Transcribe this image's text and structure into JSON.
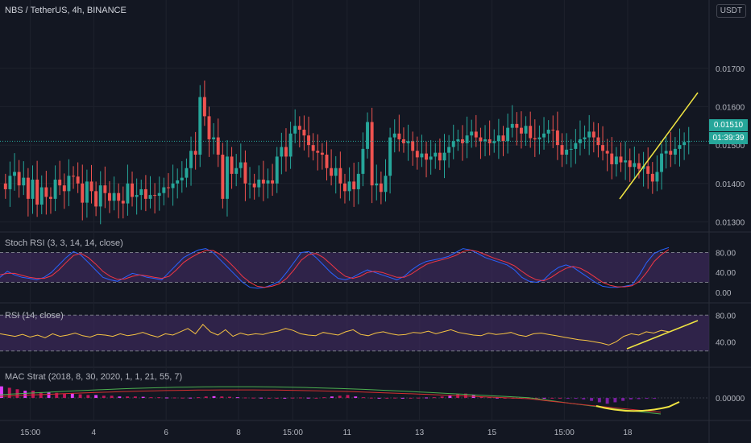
{
  "header": {
    "title": "NBS / TetherUS, 4h, BINANCE",
    "currency_button": "USDT"
  },
  "price_tags": {
    "last_price": "0.01510",
    "countdown": "01:39:39"
  },
  "colors": {
    "background": "#131722",
    "up_candle": "#26a69a",
    "down_candle": "#ef5350",
    "grid": "#1e222d",
    "oscillator_band": "#3c2a5a",
    "annotation": "#f0e442"
  },
  "chart_data": [
    {
      "type": "candlestick",
      "title": "NBS / TetherUS, 4h, BINANCE",
      "y_ticks": [
        "0.01700",
        "0.01600",
        "0.01500",
        "0.01400",
        "0.01300"
      ],
      "ylim": [
        0.0128,
        0.0184
      ],
      "x_ticks": [
        "15:00",
        "4",
        "6",
        "8",
        "15:00",
        "11",
        "13",
        "15",
        "15:00",
        "18"
      ],
      "last_price": 0.0151,
      "grid": true,
      "series": [
        {
          "close": [
            0.01385,
            0.0142,
            0.0143,
            0.01395,
            0.01415,
            0.0136,
            0.0141,
            0.01345,
            0.0139,
            0.01365,
            0.0136,
            0.0141,
            0.01395,
            0.0138,
            0.0142,
            0.01418,
            0.014,
            0.0135,
            0.01405,
            0.0138,
            0.0134,
            0.01395,
            0.01375,
            0.01355,
            0.01375,
            0.01355,
            0.01348,
            0.014,
            0.01365,
            0.0137,
            0.01385,
            0.0136,
            0.0137,
            0.01368,
            0.01375,
            0.0139,
            0.01388,
            0.014,
            0.01408,
            0.01415,
            0.0144,
            0.01485,
            0.01475,
            0.01625,
            0.01575,
            0.01515,
            0.0152,
            0.01475,
            0.0136,
            0.0147,
            0.01425,
            0.0144,
            0.01455,
            0.014,
            0.014,
            0.0139,
            0.0141,
            0.014,
            0.01408,
            0.014,
            0.0147,
            0.01495,
            0.0147,
            0.0153,
            0.0155,
            0.0154,
            0.01525,
            0.015,
            0.01485,
            0.0148,
            0.01475,
            0.0144,
            0.0142,
            0.0144,
            0.014,
            0.0138,
            0.01405,
            0.01385,
            0.01425,
            0.0149,
            0.0156,
            0.01395,
            0.014,
            0.01378,
            0.0142,
            0.0152,
            0.0153,
            0.01515,
            0.01505,
            0.0151,
            0.01485,
            0.01468,
            0.01478,
            0.01462,
            0.0147,
            0.0148,
            0.0146,
            0.0148,
            0.01495,
            0.0151,
            0.01515,
            0.01505,
            0.01525,
            0.01535,
            0.0152,
            0.0151,
            0.01515,
            0.01505,
            0.0151,
            0.01525,
            0.0151,
            0.01545,
            0.01555,
            0.01545,
            0.0153,
            0.0155,
            0.01518,
            0.01515,
            0.0152,
            0.0153,
            0.0154,
            0.01538,
            0.015,
            0.01475,
            0.01488,
            0.0149,
            0.01505,
            0.01515,
            0.0152,
            0.01535,
            0.0152,
            0.015,
            0.01485,
            0.01478,
            0.0145,
            0.0147,
            0.01455,
            0.0146,
            0.01443,
            0.01453,
            0.01438,
            0.01445,
            0.01425,
            0.01405,
            0.0143,
            0.01478,
            0.01485,
            0.01475,
            0.0149,
            0.015,
            0.01508,
            0.0151
          ],
          "open": [
            0.014,
            0.01385,
            0.0142,
            0.0143,
            0.01395,
            0.01415,
            0.0136,
            0.0141,
            0.01345,
            0.0139,
            0.01365,
            0.0136,
            0.0141,
            0.01395,
            0.0138,
            0.0142,
            0.01418,
            0.014,
            0.0135,
            0.01405,
            0.0138,
            0.0134,
            0.01395,
            0.01375,
            0.01355,
            0.01375,
            0.01355,
            0.01348,
            0.014,
            0.01365,
            0.0137,
            0.01385,
            0.0136,
            0.0137,
            0.01368,
            0.01375,
            0.0139,
            0.01388,
            0.014,
            0.01408,
            0.01415,
            0.0144,
            0.01485,
            0.01475,
            0.01625,
            0.01575,
            0.01515,
            0.0152,
            0.01475,
            0.0136,
            0.0147,
            0.01425,
            0.0144,
            0.01455,
            0.014,
            0.014,
            0.0139,
            0.0141,
            0.014,
            0.01408,
            0.014,
            0.0147,
            0.01495,
            0.0147,
            0.0153,
            0.0155,
            0.0154,
            0.01525,
            0.015,
            0.01485,
            0.0148,
            0.01475,
            0.0144,
            0.0142,
            0.0144,
            0.014,
            0.0138,
            0.01405,
            0.01385,
            0.01425,
            0.0149,
            0.0156,
            0.01395,
            0.014,
            0.01378,
            0.0142,
            0.0152,
            0.0153,
            0.01515,
            0.01505,
            0.0151,
            0.01485,
            0.01468,
            0.01478,
            0.01462,
            0.0147,
            0.0148,
            0.0146,
            0.0148,
            0.01495,
            0.0151,
            0.01515,
            0.01505,
            0.01525,
            0.01535,
            0.0152,
            0.0151,
            0.01515,
            0.01505,
            0.0151,
            0.01525,
            0.0151,
            0.01545,
            0.01555,
            0.01545,
            0.0153,
            0.0155,
            0.01518,
            0.01515,
            0.0152,
            0.0153,
            0.0154,
            0.01538,
            0.015,
            0.01475,
            0.01488,
            0.0149,
            0.01505,
            0.01515,
            0.0152,
            0.01535,
            0.0152,
            0.015,
            0.01485,
            0.01478,
            0.0145,
            0.0147,
            0.01455,
            0.0146,
            0.01443,
            0.01453,
            0.01438,
            0.01445,
            0.01425,
            0.01405,
            0.0143,
            0.01478,
            0.01485,
            0.01475,
            0.0149,
            0.015,
            0.01508
          ]
        }
      ]
    },
    {
      "type": "line",
      "title": "Stoch RSI (3, 3, 14, 14, close)",
      "y_ticks": [
        "80.00",
        "40.00",
        "0.00"
      ],
      "ylim": [
        -10,
        110
      ],
      "band": [
        20,
        80
      ],
      "series": [
        {
          "color": "#2962ff",
          "values": [
            30,
            42,
            35,
            30,
            28,
            25,
            30,
            40,
            55,
            70,
            82,
            75,
            60,
            45,
            30,
            25,
            22,
            30,
            38,
            35,
            30,
            28,
            25,
            40,
            55,
            70,
            78,
            85,
            88,
            80,
            65,
            50,
            35,
            20,
            10,
            8,
            10,
            15,
            22,
            40,
            60,
            80,
            82,
            70,
            55,
            40,
            28,
            25,
            30,
            38,
            45,
            40,
            35,
            30,
            25,
            32,
            45,
            55,
            62,
            65,
            68,
            72,
            80,
            88,
            85,
            78,
            70,
            65,
            60,
            55,
            45,
            30,
            22,
            20,
            25,
            40,
            50,
            55,
            50,
            40,
            30,
            20,
            12,
            10,
            10,
            12,
            15,
            35,
            60,
            78,
            85,
            90
          ]
        },
        {
          "color": "#f23645",
          "values": [
            35,
            38,
            38,
            34,
            30,
            28,
            28,
            33,
            45,
            60,
            74,
            78,
            70,
            57,
            42,
            32,
            26,
            27,
            32,
            35,
            33,
            30,
            28,
            32,
            45,
            60,
            70,
            78,
            84,
            84,
            76,
            63,
            48,
            32,
            20,
            12,
            10,
            12,
            17,
            28,
            45,
            65,
            76,
            78,
            70,
            57,
            43,
            32,
            28,
            32,
            40,
            42,
            40,
            35,
            30,
            30,
            37,
            47,
            56,
            61,
            65,
            69,
            74,
            82,
            85,
            82,
            76,
            70,
            65,
            60,
            53,
            42,
            32,
            25,
            23,
            30,
            40,
            48,
            52,
            48,
            40,
            30,
            20,
            14,
            11,
            11,
            13,
            22,
            40,
            62,
            76,
            86
          ]
        }
      ]
    },
    {
      "type": "line",
      "title": "RSI (14, close)",
      "y_ticks": [
        "80.00",
        "40.00"
      ],
      "ylim": [
        10,
        90
      ],
      "band": [
        26,
        80
      ],
      "series": [
        {
          "color": "#f6c343",
          "values": [
            52,
            50,
            48,
            51,
            47,
            50,
            46,
            52,
            48,
            50,
            53,
            49,
            47,
            51,
            50,
            48,
            52,
            49,
            51,
            54,
            50,
            47,
            52,
            50,
            55,
            60,
            52,
            66,
            55,
            50,
            58,
            48,
            53,
            50,
            52,
            51,
            54,
            56,
            60,
            57,
            52,
            50,
            49,
            54,
            52,
            50,
            55,
            58,
            51,
            49,
            53,
            55,
            52,
            50,
            51,
            54,
            53,
            56,
            52,
            55,
            58,
            54,
            52,
            50,
            49,
            53,
            51,
            52,
            54,
            50,
            48,
            52,
            53,
            51,
            49,
            47,
            45,
            43,
            42,
            40,
            38,
            35,
            40,
            48,
            52,
            50,
            55,
            53,
            57,
            55
          ]
        }
      ]
    },
    {
      "type": "bar",
      "title": "MAC Strat (2018, 8, 30, 2020, 1, 1, 21, 55, 7)",
      "y_ticks": [
        "0.00000"
      ],
      "ylim": [
        -1,
        1
      ],
      "series": [
        {
          "name": "",
          "values": [
            0.8,
            0.7,
            0.6,
            0.5,
            0.5,
            0.4,
            0.4,
            0.35,
            0.3,
            0.3,
            0.25,
            0.2,
            0.2,
            0.15,
            0.15,
            0.1,
            0.1,
            0.1,
            0.08,
            0.05,
            0.05,
            0.03,
            0.03,
            0.02,
            0.02,
            0.05,
            0.1,
            0.12,
            0.1,
            0.08,
            0.05,
            0.03,
            0.02,
            0.02,
            0.01,
            0.01,
            0.01,
            0.02,
            0.03,
            0.02,
            0.01,
            0.05,
            0.1,
            0.15,
            0.2,
            0.1,
            0.05,
            0.02,
            0.01,
            0.01,
            0.02,
            0.01,
            0.01,
            0.02,
            0.03,
            0.05,
            0.1,
            0.15,
            0.25,
            0.3,
            0.2,
            0.1,
            0.05,
            0.02,
            0.01,
            0.01,
            0.01,
            0.02,
            0.01,
            0.01,
            0.01,
            0.01,
            -0.02,
            -0.05,
            -0.1,
            -0.2,
            -0.3,
            -0.4,
            -0.3,
            -0.2,
            -0.1,
            -0.08,
            -0.05,
            -0.03
          ]
        }
      ]
    }
  ],
  "annotations": {
    "price_trendline": true,
    "rsi_trendline": true,
    "mac_arc": true
  }
}
